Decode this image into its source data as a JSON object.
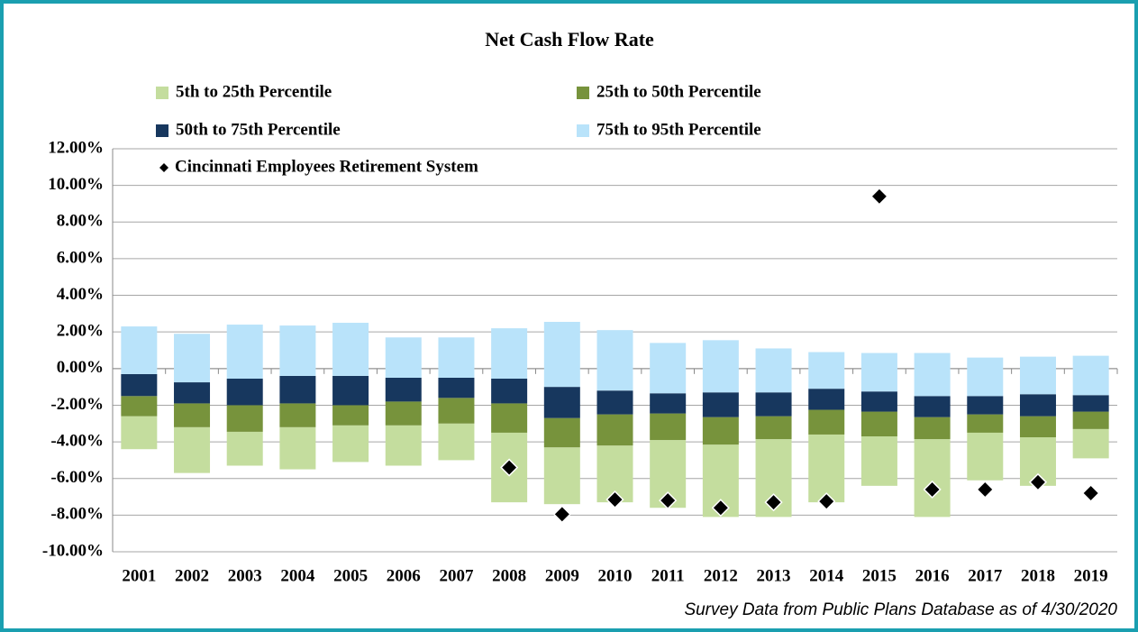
{
  "chart_data": {
    "type": "floating_bar",
    "title": "Net Cash Flow Rate",
    "footnote": "Survey Data from Public Plans Database as of 4/30/2020",
    "categories": [
      "2001",
      "2002",
      "2003",
      "2004",
      "2005",
      "2006",
      "2007",
      "2008",
      "2009",
      "2010",
      "2011",
      "2012",
      "2013",
      "2014",
      "2015",
      "2016",
      "2017",
      "2018",
      "2019"
    ],
    "series": [
      {
        "name": "5th to 25th Percentile",
        "color": "#c4dd9e",
        "ranges": [
          [
            -4.4,
            -2.6
          ],
          [
            -5.7,
            -3.2
          ],
          [
            -5.3,
            -3.45
          ],
          [
            -5.5,
            -3.2
          ],
          [
            -5.1,
            -3.1
          ],
          [
            -5.3,
            -3.1
          ],
          [
            -5.0,
            -3.0
          ],
          [
            -7.3,
            -3.5
          ],
          [
            -7.4,
            -4.3
          ],
          [
            -7.3,
            -4.2
          ],
          [
            -7.6,
            -3.9
          ],
          [
            -8.1,
            -4.15
          ],
          [
            -8.1,
            -3.85
          ],
          [
            -7.3,
            -3.6
          ],
          [
            -6.4,
            -3.7
          ],
          [
            -8.1,
            -3.85
          ],
          [
            -6.1,
            -3.5
          ],
          [
            -6.4,
            -3.75
          ],
          [
            -4.9,
            -3.3
          ]
        ]
      },
      {
        "name": "25th to 50th Percentile",
        "color": "#77933c",
        "ranges": [
          [
            -2.6,
            -1.5
          ],
          [
            -3.2,
            -1.9
          ],
          [
            -3.45,
            -2.0
          ],
          [
            -3.2,
            -1.9
          ],
          [
            -3.1,
            -2.0
          ],
          [
            -3.1,
            -1.8
          ],
          [
            -3.0,
            -1.6
          ],
          [
            -3.5,
            -1.9
          ],
          [
            -4.3,
            -2.7
          ],
          [
            -4.2,
            -2.5
          ],
          [
            -3.9,
            -2.45
          ],
          [
            -4.15,
            -2.65
          ],
          [
            -3.85,
            -2.6
          ],
          [
            -3.6,
            -2.25
          ],
          [
            -3.7,
            -2.35
          ],
          [
            -3.85,
            -2.65
          ],
          [
            -3.5,
            -2.5
          ],
          [
            -3.75,
            -2.6
          ],
          [
            -3.3,
            -2.35
          ]
        ]
      },
      {
        "name": "50th to 75th Percentile",
        "color": "#17375e",
        "ranges": [
          [
            -1.5,
            -0.3
          ],
          [
            -1.9,
            -0.75
          ],
          [
            -2.0,
            -0.55
          ],
          [
            -1.9,
            -0.4
          ],
          [
            -2.0,
            -0.4
          ],
          [
            -1.8,
            -0.5
          ],
          [
            -1.6,
            -0.5
          ],
          [
            -1.9,
            -0.55
          ],
          [
            -2.7,
            -1.0
          ],
          [
            -2.5,
            -1.2
          ],
          [
            -2.45,
            -1.35
          ],
          [
            -2.65,
            -1.3
          ],
          [
            -2.6,
            -1.3
          ],
          [
            -2.25,
            -1.1
          ],
          [
            -2.35,
            -1.25
          ],
          [
            -2.65,
            -1.5
          ],
          [
            -2.5,
            -1.5
          ],
          [
            -2.6,
            -1.4
          ],
          [
            -2.35,
            -1.45
          ]
        ]
      },
      {
        "name": "75th to 95th Percentile",
        "color": "#b9e3fa",
        "ranges": [
          [
            -0.3,
            2.3
          ],
          [
            -0.75,
            1.9
          ],
          [
            -0.55,
            2.4
          ],
          [
            -0.4,
            2.35
          ],
          [
            -0.4,
            2.5
          ],
          [
            -0.5,
            1.7
          ],
          [
            -0.5,
            1.7
          ],
          [
            -0.55,
            2.2
          ],
          [
            -1.0,
            2.55
          ],
          [
            -1.2,
            2.1
          ],
          [
            -1.35,
            1.4
          ],
          [
            -1.3,
            1.55
          ],
          [
            -1.3,
            1.1
          ],
          [
            -1.1,
            0.9
          ],
          [
            -1.25,
            0.85
          ],
          [
            -1.5,
            0.85
          ],
          [
            -1.5,
            0.6
          ],
          [
            -1.4,
            0.65
          ],
          [
            -1.45,
            0.7
          ]
        ]
      }
    ],
    "points": {
      "name": "Cincinnati Employees Retirement System",
      "color": "#000000",
      "values": [
        null,
        null,
        null,
        null,
        null,
        null,
        null,
        -5.4,
        -7.95,
        -7.15,
        -7.2,
        -7.6,
        -7.3,
        -7.25,
        9.4,
        -6.6,
        -6.6,
        -6.2,
        -6.8
      ]
    },
    "ylim": [
      -10,
      12
    ],
    "yticks": [
      {
        "value": -10,
        "label": "-10.00%"
      },
      {
        "value": -8,
        "label": "-8.00%"
      },
      {
        "value": -6,
        "label": "-6.00%"
      },
      {
        "value": -4,
        "label": "-4.00%"
      },
      {
        "value": -2,
        "label": "-2.00%"
      },
      {
        "value": 0,
        "label": "0.00%"
      },
      {
        "value": 2,
        "label": "2.00%"
      },
      {
        "value": 4,
        "label": "4.00%"
      },
      {
        "value": 6,
        "label": "6.00%"
      },
      {
        "value": 8,
        "label": "8.00%"
      },
      {
        "value": 10,
        "label": "10.00%"
      },
      {
        "value": 12,
        "label": "12.00%"
      }
    ],
    "grid": true
  }
}
